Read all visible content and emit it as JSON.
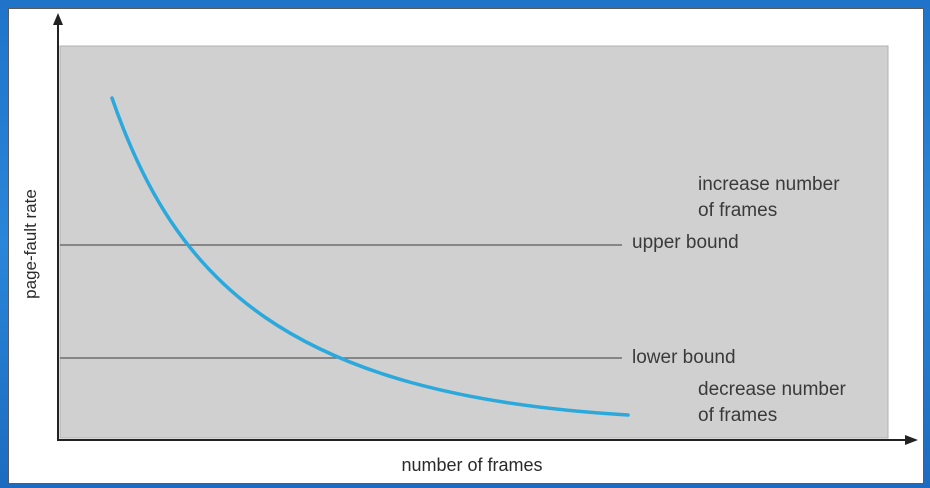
{
  "diagram": {
    "y_axis_label": "page-fault rate",
    "x_axis_label": "number of frames",
    "upper_bound_label": "upper bound",
    "lower_bound_label": "lower bound",
    "increase_note": "increase number\nof frames",
    "decrease_note": "decrease number\nof frames"
  },
  "colors": {
    "curve": "#2ba8dc",
    "plot_area": "#d0d0d0",
    "bound_lines": "#6e6e6e",
    "axes": "#222222"
  }
}
